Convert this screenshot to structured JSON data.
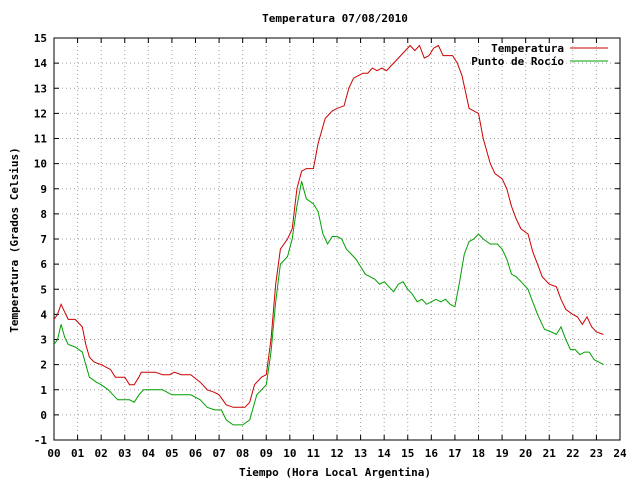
{
  "chart_data": {
    "type": "line",
    "title": "Temperatura 07/08/2010",
    "xlabel": "Tiempo (Hora Local Argentina)",
    "ylabel": "Temperatura (Grados Celsius)",
    "xlim": [
      0,
      24
    ],
    "ylim": [
      -1,
      15
    ],
    "x_ticks": [
      "00",
      "01",
      "02",
      "03",
      "04",
      "05",
      "06",
      "07",
      "08",
      "09",
      "10",
      "11",
      "12",
      "13",
      "14",
      "15",
      "16",
      "17",
      "18",
      "19",
      "20",
      "21",
      "22",
      "23",
      "24"
    ],
    "y_ticks": [
      "-1",
      "0",
      "1",
      "2",
      "3",
      "4",
      "5",
      "6",
      "7",
      "8",
      "9",
      "10",
      "11",
      "12",
      "13",
      "14",
      "15"
    ],
    "grid": true,
    "legend_position": "top-right",
    "series": [
      {
        "name": "Temperatura",
        "color": "#cc0000",
        "points": [
          [
            0.0,
            3.8
          ],
          [
            0.15,
            4.0
          ],
          [
            0.3,
            4.4
          ],
          [
            0.45,
            4.1
          ],
          [
            0.6,
            3.8
          ],
          [
            0.9,
            3.8
          ],
          [
            1.0,
            3.7
          ],
          [
            1.2,
            3.5
          ],
          [
            1.35,
            2.8
          ],
          [
            1.5,
            2.3
          ],
          [
            1.7,
            2.1
          ],
          [
            2.0,
            2.0
          ],
          [
            2.2,
            1.9
          ],
          [
            2.4,
            1.8
          ],
          [
            2.6,
            1.5
          ],
          [
            2.8,
            1.5
          ],
          [
            3.0,
            1.5
          ],
          [
            3.2,
            1.2
          ],
          [
            3.4,
            1.2
          ],
          [
            3.6,
            1.5
          ],
          [
            3.7,
            1.7
          ],
          [
            4.0,
            1.7
          ],
          [
            4.3,
            1.7
          ],
          [
            4.6,
            1.6
          ],
          [
            4.9,
            1.6
          ],
          [
            5.1,
            1.7
          ],
          [
            5.4,
            1.6
          ],
          [
            5.8,
            1.6
          ],
          [
            6.2,
            1.3
          ],
          [
            6.5,
            1.0
          ],
          [
            6.8,
            0.9
          ],
          [
            7.0,
            0.8
          ],
          [
            7.3,
            0.4
          ],
          [
            7.6,
            0.3
          ],
          [
            7.9,
            0.3
          ],
          [
            8.1,
            0.3
          ],
          [
            8.3,
            0.5
          ],
          [
            8.5,
            1.2
          ],
          [
            8.8,
            1.5
          ],
          [
            9.0,
            1.6
          ],
          [
            9.2,
            3.0
          ],
          [
            9.4,
            5.2
          ],
          [
            9.6,
            6.6
          ],
          [
            9.9,
            7.0
          ],
          [
            10.1,
            7.4
          ],
          [
            10.3,
            9.0
          ],
          [
            10.5,
            9.7
          ],
          [
            10.7,
            9.8
          ],
          [
            11.0,
            9.8
          ],
          [
            11.2,
            10.8
          ],
          [
            11.5,
            11.8
          ],
          [
            11.8,
            12.1
          ],
          [
            12.0,
            12.2
          ],
          [
            12.3,
            12.3
          ],
          [
            12.5,
            13.0
          ],
          [
            12.7,
            13.4
          ],
          [
            12.9,
            13.5
          ],
          [
            13.1,
            13.6
          ],
          [
            13.3,
            13.6
          ],
          [
            13.5,
            13.8
          ],
          [
            13.7,
            13.7
          ],
          [
            13.9,
            13.8
          ],
          [
            14.1,
            13.7
          ],
          [
            14.3,
            13.9
          ],
          [
            14.5,
            14.1
          ],
          [
            14.7,
            14.3
          ],
          [
            14.9,
            14.5
          ],
          [
            15.1,
            14.7
          ],
          [
            15.3,
            14.5
          ],
          [
            15.5,
            14.7
          ],
          [
            15.7,
            14.2
          ],
          [
            15.9,
            14.3
          ],
          [
            16.1,
            14.6
          ],
          [
            16.3,
            14.7
          ],
          [
            16.5,
            14.3
          ],
          [
            16.7,
            14.3
          ],
          [
            16.9,
            14.3
          ],
          [
            17.1,
            14.0
          ],
          [
            17.3,
            13.5
          ],
          [
            17.6,
            12.2
          ],
          [
            17.8,
            12.1
          ],
          [
            18.0,
            12.0
          ],
          [
            18.2,
            11.0
          ],
          [
            18.5,
            10.0
          ],
          [
            18.7,
            9.6
          ],
          [
            19.0,
            9.4
          ],
          [
            19.2,
            9.0
          ],
          [
            19.4,
            8.3
          ],
          [
            19.6,
            7.8
          ],
          [
            19.8,
            7.4
          ],
          [
            20.1,
            7.2
          ],
          [
            20.3,
            6.5
          ],
          [
            20.5,
            6.0
          ],
          [
            20.7,
            5.5
          ],
          [
            21.0,
            5.2
          ],
          [
            21.3,
            5.1
          ],
          [
            21.5,
            4.6
          ],
          [
            21.7,
            4.2
          ],
          [
            22.0,
            4.0
          ],
          [
            22.2,
            3.9
          ],
          [
            22.4,
            3.6
          ],
          [
            22.6,
            3.9
          ],
          [
            22.8,
            3.5
          ],
          [
            23.0,
            3.3
          ],
          [
            23.3,
            3.2
          ]
        ]
      },
      {
        "name": "Punto de Rocío",
        "color": "#00a000",
        "points": [
          [
            0.0,
            2.8
          ],
          [
            0.15,
            3.0
          ],
          [
            0.3,
            3.6
          ],
          [
            0.45,
            3.1
          ],
          [
            0.6,
            2.8
          ],
          [
            0.9,
            2.7
          ],
          [
            1.2,
            2.5
          ],
          [
            1.35,
            2.0
          ],
          [
            1.5,
            1.5
          ],
          [
            1.8,
            1.3
          ],
          [
            2.0,
            1.2
          ],
          [
            2.3,
            1.0
          ],
          [
            2.5,
            0.8
          ],
          [
            2.7,
            0.6
          ],
          [
            3.0,
            0.6
          ],
          [
            3.2,
            0.6
          ],
          [
            3.4,
            0.5
          ],
          [
            3.6,
            0.8
          ],
          [
            3.8,
            1.0
          ],
          [
            4.2,
            1.0
          ],
          [
            4.6,
            1.0
          ],
          [
            5.0,
            0.8
          ],
          [
            5.4,
            0.8
          ],
          [
            5.8,
            0.8
          ],
          [
            6.2,
            0.6
          ],
          [
            6.5,
            0.3
          ],
          [
            6.8,
            0.2
          ],
          [
            7.1,
            0.2
          ],
          [
            7.3,
            -0.2
          ],
          [
            7.6,
            -0.4
          ],
          [
            8.0,
            -0.4
          ],
          [
            8.3,
            -0.2
          ],
          [
            8.6,
            0.8
          ],
          [
            9.0,
            1.2
          ],
          [
            9.2,
            2.5
          ],
          [
            9.4,
            4.5
          ],
          [
            9.6,
            6.0
          ],
          [
            9.9,
            6.3
          ],
          [
            10.1,
            7.0
          ],
          [
            10.3,
            8.3
          ],
          [
            10.5,
            9.3
          ],
          [
            10.7,
            8.6
          ],
          [
            11.0,
            8.4
          ],
          [
            11.2,
            8.1
          ],
          [
            11.4,
            7.2
          ],
          [
            11.6,
            6.8
          ],
          [
            11.8,
            7.1
          ],
          [
            12.0,
            7.1
          ],
          [
            12.2,
            7.0
          ],
          [
            12.4,
            6.6
          ],
          [
            12.6,
            6.4
          ],
          [
            12.8,
            6.2
          ],
          [
            13.0,
            5.9
          ],
          [
            13.2,
            5.6
          ],
          [
            13.4,
            5.5
          ],
          [
            13.6,
            5.4
          ],
          [
            13.8,
            5.2
          ],
          [
            14.0,
            5.3
          ],
          [
            14.2,
            5.1
          ],
          [
            14.4,
            4.9
          ],
          [
            14.6,
            5.2
          ],
          [
            14.8,
            5.3
          ],
          [
            15.0,
            5.0
          ],
          [
            15.2,
            4.8
          ],
          [
            15.4,
            4.5
          ],
          [
            15.6,
            4.6
          ],
          [
            15.8,
            4.4
          ],
          [
            16.0,
            4.5
          ],
          [
            16.2,
            4.6
          ],
          [
            16.4,
            4.5
          ],
          [
            16.6,
            4.6
          ],
          [
            16.8,
            4.4
          ],
          [
            17.0,
            4.3
          ],
          [
            17.2,
            5.3
          ],
          [
            17.4,
            6.4
          ],
          [
            17.6,
            6.9
          ],
          [
            17.8,
            7.0
          ],
          [
            18.0,
            7.2
          ],
          [
            18.2,
            7.0
          ],
          [
            18.5,
            6.8
          ],
          [
            18.8,
            6.8
          ],
          [
            19.0,
            6.6
          ],
          [
            19.2,
            6.2
          ],
          [
            19.4,
            5.6
          ],
          [
            19.6,
            5.5
          ],
          [
            19.8,
            5.3
          ],
          [
            20.1,
            5.0
          ],
          [
            20.3,
            4.5
          ],
          [
            20.5,
            4.0
          ],
          [
            20.8,
            3.4
          ],
          [
            21.1,
            3.3
          ],
          [
            21.3,
            3.2
          ],
          [
            21.5,
            3.5
          ],
          [
            21.7,
            3.0
          ],
          [
            21.9,
            2.6
          ],
          [
            22.1,
            2.6
          ],
          [
            22.3,
            2.4
          ],
          [
            22.5,
            2.5
          ],
          [
            22.7,
            2.5
          ],
          [
            22.9,
            2.2
          ],
          [
            23.1,
            2.1
          ],
          [
            23.3,
            2.0
          ]
        ]
      }
    ]
  }
}
